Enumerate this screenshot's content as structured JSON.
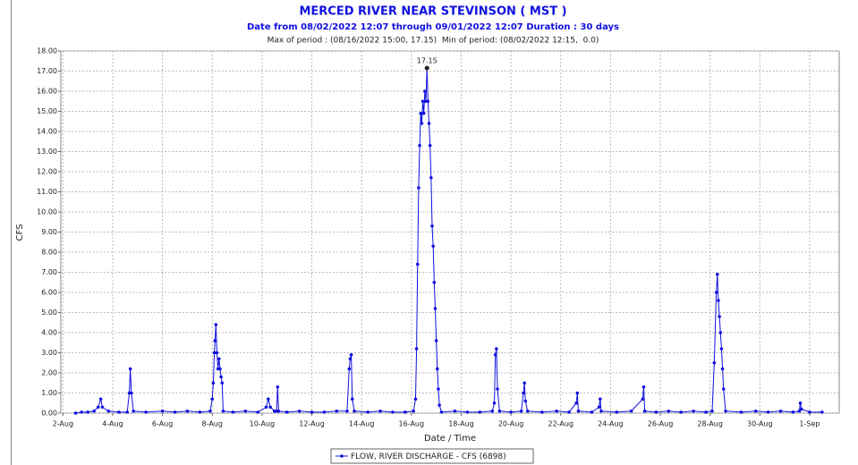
{
  "chart_data": {
    "type": "line",
    "title": "MERCED RIVER NEAR STEVINSON ( MST )",
    "subtitle": "Date from 08/02/2022 12:07 through 09/01/2022 12:07 Duration : 30 days",
    "note": "Max of period : (08/16/2022 15:00, 17.15)  Min of period: (08/02/2022 12:15,  0.0)",
    "xlabel": "Date / Time",
    "ylabel": "CFS",
    "grid": true,
    "legend": "bottom",
    "xlim": [
      "2022-08-01T22:00",
      "2022-09-02T04:30"
    ],
    "ylim": [
      0,
      18
    ],
    "yticks": [
      {
        "value": 0,
        "label": "0.00"
      },
      {
        "value": 1,
        "label": "1.00"
      },
      {
        "value": 2,
        "label": "2.00"
      },
      {
        "value": 3,
        "label": "3.00"
      },
      {
        "value": 4,
        "label": "4.00"
      },
      {
        "value": 5,
        "label": "5.00"
      },
      {
        "value": 6,
        "label": "6.00"
      },
      {
        "value": 7,
        "label": "7.00"
      },
      {
        "value": 8,
        "label": "8.00"
      },
      {
        "value": 9,
        "label": "9.00"
      },
      {
        "value": 10,
        "label": "10.00"
      },
      {
        "value": 11,
        "label": "11.00"
      },
      {
        "value": 12,
        "label": "12.00"
      },
      {
        "value": 13,
        "label": "13.00"
      },
      {
        "value": 14,
        "label": "14.00"
      },
      {
        "value": 15,
        "label": "15.00"
      },
      {
        "value": 16,
        "label": "16.00"
      },
      {
        "value": 17,
        "label": "17.00"
      },
      {
        "value": 18,
        "label": "18.00"
      }
    ],
    "xticks": [
      {
        "value": "2022-08-02T00:00",
        "label": "2-Aug"
      },
      {
        "value": "2022-08-04T00:00",
        "label": "4-Aug"
      },
      {
        "value": "2022-08-06T00:00",
        "label": "6-Aug"
      },
      {
        "value": "2022-08-08T00:00",
        "label": "8-Aug"
      },
      {
        "value": "2022-08-10T00:00",
        "label": "10-Aug"
      },
      {
        "value": "2022-08-12T00:00",
        "label": "12-Aug"
      },
      {
        "value": "2022-08-14T00:00",
        "label": "14-Aug"
      },
      {
        "value": "2022-08-16T00:00",
        "label": "16-Aug"
      },
      {
        "value": "2022-08-18T00:00",
        "label": "18-Aug"
      },
      {
        "value": "2022-08-20T00:00",
        "label": "20-Aug"
      },
      {
        "value": "2022-08-22T00:00",
        "label": "22-Aug"
      },
      {
        "value": "2022-08-24T00:00",
        "label": "24-Aug"
      },
      {
        "value": "2022-08-26T00:00",
        "label": "26-Aug"
      },
      {
        "value": "2022-08-28T00:00",
        "label": "28-Aug"
      },
      {
        "value": "2022-08-30T00:00",
        "label": "30-Aug"
      },
      {
        "value": "2022-09-01T00:00",
        "label": "1-Sep"
      }
    ],
    "annotations": [
      {
        "text": "17.15",
        "x": "2022-08-16T15:00",
        "y": 17.15
      }
    ],
    "series": [
      {
        "name": "FLOW, RIVER DISCHARGE - CFS (6898)",
        "color": "#1010e0",
        "x": [
          "2022-08-02T12:15",
          "2022-08-02T18:00",
          "2022-08-03T00:00",
          "2022-08-03T06:00",
          "2022-08-03T10:00",
          "2022-08-03T12:30",
          "2022-08-03T14:00",
          "2022-08-03T20:00",
          "2022-08-04T06:00",
          "2022-08-04T14:00",
          "2022-08-04T16:00",
          "2022-08-04T17:00",
          "2022-08-04T18:00",
          "2022-08-04T20:00",
          "2022-08-05T08:00",
          "2022-08-06T00:00",
          "2022-08-06T12:00",
          "2022-08-07T00:00",
          "2022-08-07T12:00",
          "2022-08-07T22:00",
          "2022-08-08T00:00",
          "2022-08-08T01:00",
          "2022-08-08T02:00",
          "2022-08-08T02:40",
          "2022-08-08T03:30",
          "2022-08-08T04:30",
          "2022-08-08T05:30",
          "2022-08-08T06:30",
          "2022-08-08T07:30",
          "2022-08-08T08:30",
          "2022-08-08T09:30",
          "2022-08-08T10:30",
          "2022-08-08T20:00",
          "2022-08-09T08:00",
          "2022-08-09T20:00",
          "2022-08-10T04:00",
          "2022-08-10T06:00",
          "2022-08-10T08:00",
          "2022-08-10T12:00",
          "2022-08-10T14:00",
          "2022-08-10T15:00",
          "2022-08-10T16:00",
          "2022-08-11T00:00",
          "2022-08-11T12:00",
          "2022-08-12T00:00",
          "2022-08-12T12:00",
          "2022-08-13T00:00",
          "2022-08-13T10:00",
          "2022-08-13T12:00",
          "2022-08-13T13:00",
          "2022-08-13T14:00",
          "2022-08-13T15:00",
          "2022-08-13T17:00",
          "2022-08-14T06:00",
          "2022-08-14T18:00",
          "2022-08-15T06:00",
          "2022-08-15T18:00",
          "2022-08-16T02:00",
          "2022-08-16T04:00",
          "2022-08-16T05:00",
          "2022-08-16T06:00",
          "2022-08-16T07:00",
          "2022-08-16T08:00",
          "2022-08-16T09:00",
          "2022-08-16T10:00",
          "2022-08-16T11:00",
          "2022-08-16T12:00",
          "2022-08-16T13:00",
          "2022-08-16T14:00",
          "2022-08-16T15:00",
          "2022-08-16T16:00",
          "2022-08-16T17:00",
          "2022-08-16T18:00",
          "2022-08-16T19:00",
          "2022-08-16T20:00",
          "2022-08-16T21:00",
          "2022-08-16T22:00",
          "2022-08-16T23:00",
          "2022-08-17T00:00",
          "2022-08-17T01:00",
          "2022-08-17T02:00",
          "2022-08-17T03:00",
          "2022-08-17T05:00",
          "2022-08-17T18:00",
          "2022-08-18T06:00",
          "2022-08-18T18:00",
          "2022-08-19T06:00",
          "2022-08-19T08:00",
          "2022-08-19T09:00",
          "2022-08-19T10:00",
          "2022-08-19T11:00",
          "2022-08-19T13:00",
          "2022-08-20T00:00",
          "2022-08-20T10:00",
          "2022-08-20T12:00",
          "2022-08-20T13:00",
          "2022-08-20T14:00",
          "2022-08-20T16:00",
          "2022-08-21T06:00",
          "2022-08-21T20:00",
          "2022-08-22T08:00",
          "2022-08-22T15:00",
          "2022-08-22T16:00",
          "2022-08-22T17:00",
          "2022-08-23T06:00",
          "2022-08-23T13:00",
          "2022-08-23T14:00",
          "2022-08-23T15:00",
          "2022-08-24T06:00",
          "2022-08-24T20:00",
          "2022-08-25T07:00",
          "2022-08-25T08:00",
          "2022-08-25T09:00",
          "2022-08-25T20:00",
          "2022-08-26T08:00",
          "2022-08-26T20:00",
          "2022-08-27T08:00",
          "2022-08-27T20:00",
          "2022-08-28T02:00",
          "2022-08-28T04:00",
          "2022-08-28T06:00",
          "2022-08-28T07:00",
          "2022-08-28T08:00",
          "2022-08-28T09:00",
          "2022-08-28T10:00",
          "2022-08-28T11:00",
          "2022-08-28T12:00",
          "2022-08-28T13:00",
          "2022-08-28T15:00",
          "2022-08-29T06:00",
          "2022-08-29T20:00",
          "2022-08-30T08:00",
          "2022-08-30T20:00",
          "2022-08-31T08:00",
          "2022-08-31T14:00",
          "2022-08-31T15:00",
          "2022-08-31T16:00",
          "2022-09-01T00:00",
          "2022-09-01T12:00"
        ],
        "values": [
          0,
          0.05,
          0.05,
          0.1,
          0.3,
          0.7,
          0.3,
          0.1,
          0.05,
          0.05,
          1.0,
          2.2,
          1.0,
          0.1,
          0.05,
          0.1,
          0.05,
          0.1,
          0.05,
          0.1,
          0.7,
          1.5,
          3.0,
          3.6,
          4.4,
          3.0,
          2.2,
          2.7,
          2.2,
          1.8,
          1.5,
          0.1,
          0.05,
          0.1,
          0.05,
          0.3,
          0.7,
          0.3,
          0.1,
          0.1,
          1.3,
          0.1,
          0.05,
          0.1,
          0.05,
          0.05,
          0.1,
          0.1,
          2.2,
          2.7,
          2.9,
          0.7,
          0.1,
          0.05,
          0.1,
          0.05,
          0.05,
          0.1,
          0.7,
          3.2,
          7.4,
          11.2,
          13.3,
          14.9,
          14.4,
          15.5,
          14.9,
          16.0,
          15.5,
          17.15,
          15.5,
          14.4,
          13.3,
          11.7,
          9.3,
          8.3,
          6.5,
          5.2,
          3.6,
          2.2,
          1.2,
          0.4,
          0.05,
          0.1,
          0.05,
          0.05,
          0.1,
          0.5,
          2.9,
          3.2,
          1.2,
          0.1,
          0.05,
          0.1,
          1.0,
          1.5,
          0.6,
          0.1,
          0.05,
          0.1,
          0.05,
          0.5,
          1.0,
          0.1,
          0.05,
          0.3,
          0.7,
          0.1,
          0.05,
          0.1,
          0.7,
          1.3,
          0.1,
          0.05,
          0.1,
          0.05,
          0.1,
          0.05,
          0.1,
          2.5,
          6.0,
          6.9,
          5.6,
          4.8,
          4.0,
          3.2,
          2.2,
          1.2,
          0.1,
          0.05,
          0.1,
          0.05,
          0.1,
          0.05,
          0.1,
          0.5,
          0.2,
          0.05,
          0.05
        ]
      }
    ]
  }
}
